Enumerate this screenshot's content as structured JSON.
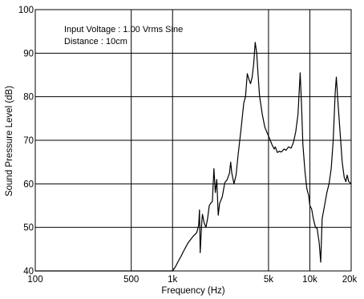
{
  "chart_data": {
    "type": "line",
    "title": "",
    "xlabel": "Frequency (Hz)",
    "ylabel": "Sound Pressure Level (dB)",
    "x_scale": "log",
    "xlim": [
      100,
      20000
    ],
    "ylim": [
      40,
      100
    ],
    "grid": true,
    "legend": "none",
    "annotations": [
      "Input Voltage : 1.00 Vrms Sine",
      "Distance : 10cm"
    ],
    "x_ticks": [
      {
        "value": 100,
        "label": "100"
      },
      {
        "value": 500,
        "label": "500"
      },
      {
        "value": 1000,
        "label": "1k"
      },
      {
        "value": 5000,
        "label": "5k"
      },
      {
        "value": 10000,
        "label": "10k"
      },
      {
        "value": 20000,
        "label": "20k"
      }
    ],
    "y_ticks": [
      {
        "value": 40,
        "label": "40"
      },
      {
        "value": 50,
        "label": "50"
      },
      {
        "value": 60,
        "label": "60"
      },
      {
        "value": 70,
        "label": "70"
      },
      {
        "value": 80,
        "label": "80"
      },
      {
        "value": 90,
        "label": "90"
      },
      {
        "value": 100,
        "label": "100"
      }
    ],
    "series": [
      {
        "color": "#000000",
        "points": [
          [
            100,
            40
          ],
          [
            1000,
            40
          ],
          [
            1050,
            41
          ],
          [
            1100,
            42.2
          ],
          [
            1150,
            43.3
          ],
          [
            1200,
            44.5
          ],
          [
            1300,
            46.5
          ],
          [
            1400,
            47.8
          ],
          [
            1500,
            48.8
          ],
          [
            1550,
            50.5
          ],
          [
            1570,
            54
          ],
          [
            1590,
            44.2
          ],
          [
            1630,
            51
          ],
          [
            1650,
            53
          ],
          [
            1700,
            51
          ],
          [
            1750,
            50
          ],
          [
            1800,
            52
          ],
          [
            1850,
            55
          ],
          [
            1900,
            55.6
          ],
          [
            1950,
            56
          ],
          [
            2000,
            63.5
          ],
          [
            2050,
            58
          ],
          [
            2100,
            61
          ],
          [
            2150,
            52.8
          ],
          [
            2200,
            55.5
          ],
          [
            2300,
            57
          ],
          [
            2400,
            60.2
          ],
          [
            2500,
            61
          ],
          [
            2600,
            62.5
          ],
          [
            2650,
            65
          ],
          [
            2700,
            62.5
          ],
          [
            2800,
            60
          ],
          [
            2900,
            62
          ],
          [
            3000,
            66.5
          ],
          [
            3150,
            72.5
          ],
          [
            3300,
            78.5
          ],
          [
            3400,
            80
          ],
          [
            3500,
            85.3
          ],
          [
            3600,
            84
          ],
          [
            3700,
            83
          ],
          [
            3800,
            84.5
          ],
          [
            3900,
            87.5
          ],
          [
            4000,
            92.5
          ],
          [
            4100,
            90
          ],
          [
            4200,
            85
          ],
          [
            4300,
            80.2
          ],
          [
            4500,
            76
          ],
          [
            4700,
            73
          ],
          [
            5000,
            71
          ],
          [
            5300,
            69
          ],
          [
            5500,
            68
          ],
          [
            5600,
            68.5
          ],
          [
            5800,
            67.2
          ],
          [
            6000,
            67.5
          ],
          [
            6200,
            67.3
          ],
          [
            6500,
            68
          ],
          [
            6700,
            67.7
          ],
          [
            7000,
            68.5
          ],
          [
            7300,
            68.2
          ],
          [
            7600,
            69.5
          ],
          [
            7900,
            72
          ],
          [
            8200,
            76
          ],
          [
            8500,
            85.5
          ],
          [
            8700,
            78
          ],
          [
            8900,
            69
          ],
          [
            9200,
            63
          ],
          [
            9500,
            59
          ],
          [
            9800,
            57.3
          ],
          [
            10000,
            55
          ],
          [
            10300,
            54.2
          ],
          [
            10600,
            52
          ],
          [
            11000,
            50
          ],
          [
            11300,
            49.8
          ],
          [
            11700,
            46.5
          ],
          [
            12000,
            42
          ],
          [
            12300,
            52
          ],
          [
            12800,
            55
          ],
          [
            13300,
            58
          ],
          [
            13800,
            60
          ],
          [
            14300,
            63.5
          ],
          [
            14800,
            70
          ],
          [
            15300,
            81
          ],
          [
            15600,
            84.5
          ],
          [
            16000,
            79
          ],
          [
            16600,
            72
          ],
          [
            17200,
            65
          ],
          [
            17800,
            61.5
          ],
          [
            18300,
            60.5
          ],
          [
            18700,
            62
          ],
          [
            19200,
            60.5
          ],
          [
            20000,
            60
          ]
        ]
      }
    ]
  }
}
